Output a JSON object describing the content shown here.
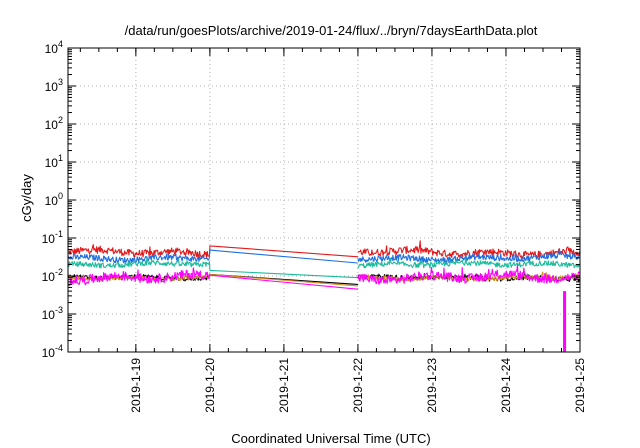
{
  "chart_data": {
    "type": "line",
    "title": "/data/run/goesPlots/archive/2019-01-24/flux/../bryn/7daysEarthData.plot",
    "xlabel": "Coordinated Universal Time (UTC)",
    "ylabel": "cGy/day",
    "yscale": "log",
    "ylim": [
      0.0001,
      10000
    ],
    "y_ticks": [
      {
        "base": "10",
        "exp": "-4"
      },
      {
        "base": "10",
        "exp": "-3"
      },
      {
        "base": "10",
        "exp": "-2"
      },
      {
        "base": "10",
        "exp": "-1"
      },
      {
        "base": "10",
        "exp": "0"
      },
      {
        "base": "10",
        "exp": "1"
      },
      {
        "base": "10",
        "exp": "2"
      },
      {
        "base": "10",
        "exp": "3"
      },
      {
        "base": "10",
        "exp": "4"
      }
    ],
    "xlim": [
      "2019-01-18 02:00",
      "2019-01-25 00:00"
    ],
    "x_ticks": [
      "2019-1-19",
      "2019-1-20",
      "2019-1-21",
      "2019-1-22",
      "2019-1-23",
      "2019-1-24",
      "2019-1-25"
    ],
    "grid": true,
    "segments": [
      {
        "from": "2019-01-18 02:00",
        "to": "2019-01-20 00:00"
      },
      {
        "from": "2019-01-22 00:00",
        "to": "2019-01-25 00:00"
      }
    ],
    "series": [
      {
        "color": "#e31a1c",
        "level": 0.042,
        "spread": 1.45,
        "gap_end_value": 0.062,
        "gap_resume_value": 0.032
      },
      {
        "color": "#1f6fe0",
        "level": 0.03,
        "spread": 1.35,
        "gap_end_value": 0.048,
        "gap_resume_value": 0.022
      },
      {
        "color": "#1abc9c",
        "level": 0.02,
        "spread": 1.3,
        "gap_end_value": 0.014,
        "gap_resume_value": 0.009
      },
      {
        "color": "#000000",
        "level": 0.009,
        "spread": 1.25,
        "gap_end_value": 0.011,
        "gap_resume_value": 0.006
      },
      {
        "color": "#d09020",
        "level": 0.009,
        "spread": 1.25,
        "gap_end_value": 0.011,
        "gap_resume_value": 0.0055
      },
      {
        "color": "#ff00ff",
        "level": 0.009,
        "spread": 1.6,
        "gap_end_value": 0.0105,
        "gap_resume_value": 0.0045,
        "dropout": {
          "at": "2019-01-24 19:00",
          "value": 0.0001
        }
      }
    ]
  }
}
